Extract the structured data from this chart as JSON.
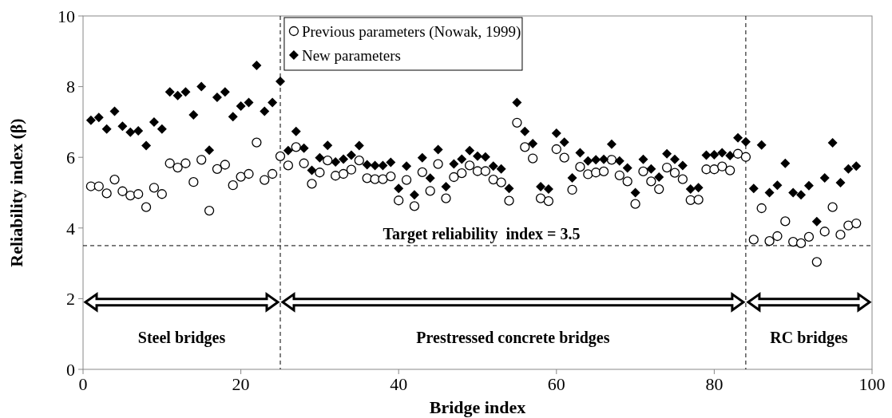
{
  "chart_data": {
    "type": "scatter",
    "xlabel": "Bridge index",
    "ylabel": "Reliability index (β)",
    "xlim": [
      0,
      100
    ],
    "xticks": [
      0,
      20,
      40,
      60,
      80,
      100
    ],
    "ylim": [
      0,
      10
    ],
    "yticks": [
      0,
      2,
      4,
      6,
      8,
      10
    ],
    "grid": false,
    "legend": "top",
    "x": [
      1,
      2,
      3,
      4,
      5,
      6,
      7,
      8,
      9,
      10,
      11,
      12,
      13,
      14,
      15,
      16,
      17,
      18,
      19,
      20,
      21,
      22,
      23,
      24,
      25,
      26,
      27,
      28,
      29,
      30,
      31,
      32,
      33,
      34,
      35,
      36,
      37,
      38,
      39,
      40,
      41,
      42,
      43,
      44,
      45,
      46,
      47,
      48,
      49,
      50,
      51,
      52,
      53,
      54,
      55,
      56,
      57,
      58,
      59,
      60,
      61,
      62,
      63,
      64,
      65,
      66,
      67,
      68,
      69,
      70,
      71,
      72,
      73,
      74,
      75,
      76,
      77,
      78,
      79,
      80,
      81,
      82,
      83,
      84,
      85,
      86,
      87,
      88,
      89,
      90,
      91,
      92,
      93,
      94,
      95,
      96,
      97,
      98
    ],
    "series": [
      {
        "name": "Previous parameters (Nowak, 1999)",
        "color": "#000000",
        "marker": "circle",
        "values": [
          5.18,
          5.18,
          4.98,
          5.37,
          5.04,
          4.92,
          4.96,
          4.59,
          5.14,
          4.96,
          5.83,
          5.71,
          5.83,
          5.3,
          5.93,
          4.49,
          5.67,
          5.79,
          5.21,
          5.45,
          5.53,
          6.42,
          5.36,
          5.53,
          6.03,
          5.77,
          6.29,
          5.83,
          5.25,
          5.57,
          5.91,
          5.48,
          5.53,
          5.65,
          5.91,
          5.41,
          5.38,
          5.38,
          5.46,
          4.78,
          5.36,
          4.62,
          5.58,
          5.05,
          5.81,
          4.84,
          5.44,
          5.55,
          5.77,
          5.61,
          5.61,
          5.37,
          5.29,
          4.77,
          6.98,
          6.29,
          5.97,
          4.84,
          4.76,
          6.23,
          5.99,
          5.08,
          5.73,
          5.52,
          5.57,
          5.6,
          5.93,
          5.49,
          5.32,
          4.68,
          5.6,
          5.32,
          5.1,
          5.71,
          5.56,
          5.38,
          4.79,
          4.8,
          5.66,
          5.66,
          5.74,
          5.63,
          6.1,
          6.01,
          3.67,
          4.56,
          3.63,
          3.77,
          4.19,
          3.61,
          3.57,
          3.75,
          3.04,
          3.9,
          4.59,
          3.81,
          4.07,
          4.13
        ]
      },
      {
        "name": "New parameters",
        "color": "#000000",
        "marker": "diamond",
        "values": [
          7.05,
          7.13,
          6.8,
          7.3,
          6.88,
          6.71,
          6.75,
          6.33,
          7.0,
          6.8,
          7.85,
          7.75,
          7.85,
          7.2,
          8.0,
          6.2,
          7.7,
          7.85,
          7.15,
          7.45,
          7.55,
          8.6,
          7.3,
          7.55,
          8.15,
          6.19,
          6.73,
          6.26,
          5.63,
          5.99,
          6.34,
          5.87,
          5.95,
          6.06,
          6.33,
          5.79,
          5.77,
          5.77,
          5.86,
          5.12,
          5.75,
          4.94,
          5.99,
          5.41,
          6.22,
          5.17,
          5.81,
          5.95,
          6.19,
          6.03,
          6.01,
          5.75,
          5.67,
          5.12,
          7.55,
          6.73,
          6.39,
          5.17,
          5.1,
          6.68,
          6.43,
          5.42,
          6.13,
          5.9,
          5.93,
          5.94,
          6.37,
          5.9,
          5.7,
          5.0,
          5.94,
          5.67,
          5.44,
          6.1,
          5.94,
          5.77,
          5.1,
          5.14,
          6.06,
          6.07,
          6.13,
          6.05,
          6.55,
          6.44,
          5.12,
          6.35,
          5.0,
          5.21,
          5.83,
          5.0,
          4.94,
          5.2,
          4.18,
          5.42,
          6.41,
          5.28,
          5.67,
          5.75
        ]
      }
    ],
    "ref_lines": [
      {
        "axis": "x",
        "value": 25,
        "line_style": "dashed",
        "color": "#000000"
      },
      {
        "axis": "x",
        "value": 84,
        "line_style": "dashed",
        "color": "#000000"
      },
      {
        "axis": "y",
        "value": 3.5,
        "label": "Target reliability  index = 3.5",
        "line_style": "dashed",
        "color": "#000000"
      }
    ],
    "annotations": [
      "Steel bridges",
      "Prestressed concrete bridges",
      "RC bridges"
    ]
  }
}
